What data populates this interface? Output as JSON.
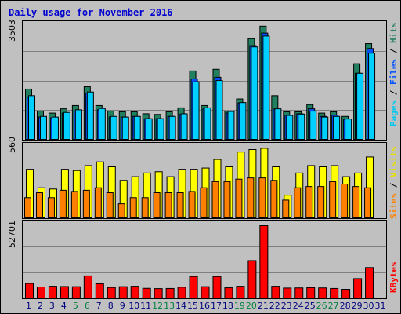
{
  "title": "Daily usage for November 2016",
  "right_labels": {
    "top": [
      {
        "text": "Pages",
        "color": "#00c8f0"
      },
      {
        "text": " / ",
        "color": "#000000"
      },
      {
        "text": "Files",
        "color": "#0050ff"
      },
      {
        "text": " / ",
        "color": "#000000"
      },
      {
        "text": "Hits",
        "color": "#2a8060"
      }
    ],
    "middle": [
      {
        "text": "Sites",
        "color": "#ff8000"
      },
      {
        "text": " / ",
        "color": "#000000"
      },
      {
        "text": "Visits",
        "color": "#e8e000"
      }
    ],
    "bottom": [
      {
        "text": "KBytes",
        "color": "#ff0000"
      }
    ]
  },
  "y_max_labels": {
    "hits": "3503",
    "visits": "560",
    "kbytes": "52701"
  },
  "colors": {
    "hits": "#208060",
    "files": "#0050ff",
    "pages": "#00d0ff",
    "visits": "#ffff00",
    "sites": "#ff8000",
    "kbytes": "#ff0000",
    "weekday_label": "#000080",
    "weekend_label": "#008040"
  },
  "chart_data": [
    {
      "type": "bar",
      "title": "Daily usage for November 2016",
      "categories": [
        "1",
        "2",
        "3",
        "4",
        "5",
        "6",
        "7",
        "8",
        "9",
        "10",
        "11",
        "12",
        "13",
        "14",
        "15",
        "16",
        "17",
        "18",
        "19",
        "20",
        "21",
        "22",
        "23",
        "24",
        "25",
        "26",
        "27",
        "28",
        "29",
        "30",
        "31"
      ],
      "weekend_days": [
        "5",
        "6",
        "12",
        "13",
        "19",
        "20",
        "26",
        "27"
      ],
      "ylim": [
        0,
        3503
      ],
      "series": [
        {
          "name": "Hits",
          "values": [
            1550,
            880,
            820,
            950,
            1050,
            1620,
            1050,
            880,
            860,
            860,
            800,
            780,
            860,
            980,
            2100,
            1050,
            2150,
            880,
            1250,
            3080,
            3460,
            1350,
            860,
            860,
            1080,
            820,
            860,
            720,
            2320,
            2930,
            0
          ]
        },
        {
          "name": "Files",
          "values": [
            1300,
            700,
            680,
            820,
            880,
            1430,
            920,
            700,
            700,
            720,
            650,
            650,
            720,
            780,
            1860,
            950,
            1910,
            820,
            1130,
            2870,
            3250,
            940,
            760,
            800,
            950,
            720,
            760,
            630,
            2030,
            2780,
            0
          ]
        },
        {
          "name": "Pages",
          "values": [
            1350,
            720,
            700,
            840,
            920,
            1460,
            960,
            720,
            700,
            720,
            650,
            650,
            720,
            800,
            1770,
            980,
            1810,
            870,
            1140,
            2830,
            3160,
            950,
            750,
            790,
            880,
            700,
            720,
            640,
            2030,
            2640,
            0
          ]
        }
      ]
    },
    {
      "type": "bar",
      "categories": [
        "1",
        "2",
        "3",
        "4",
        "5",
        "6",
        "7",
        "8",
        "9",
        "10",
        "11",
        "12",
        "13",
        "14",
        "15",
        "16",
        "17",
        "18",
        "19",
        "20",
        "21",
        "22",
        "23",
        "24",
        "25",
        "26",
        "27",
        "28",
        "29",
        "30",
        "31"
      ],
      "ylim": [
        0,
        560
      ],
      "series": [
        {
          "name": "Visits",
          "values": [
            400,
            250,
            240,
            400,
            390,
            430,
            460,
            420,
            310,
            340,
            370,
            380,
            340,
            400,
            400,
            410,
            480,
            420,
            540,
            560,
            570,
            420,
            190,
            370,
            430,
            420,
            430,
            340,
            370,
            500,
            0
          ]
        },
        {
          "name": "Sites",
          "values": [
            170,
            210,
            170,
            230,
            220,
            230,
            250,
            210,
            120,
            170,
            170,
            210,
            210,
            210,
            220,
            250,
            300,
            300,
            320,
            330,
            330,
            310,
            150,
            250,
            260,
            260,
            300,
            280,
            260,
            250,
            0
          ]
        }
      ]
    },
    {
      "type": "bar",
      "categories": [
        "1",
        "2",
        "3",
        "4",
        "5",
        "6",
        "7",
        "8",
        "9",
        "10",
        "11",
        "12",
        "13",
        "14",
        "15",
        "16",
        "17",
        "18",
        "19",
        "20",
        "21",
        "22",
        "23",
        "24",
        "25",
        "26",
        "27",
        "28",
        "29",
        "30",
        "31"
      ],
      "ylim": [
        0,
        52701
      ],
      "series": [
        {
          "name": "KBytes",
          "values": [
            11000,
            8500,
            9000,
            8800,
            8700,
            16500,
            10800,
            8100,
            8700,
            9000,
            7500,
            7300,
            7400,
            8300,
            16000,
            8700,
            16000,
            7900,
            9000,
            27500,
            52700,
            9000,
            7700,
            7800,
            8000,
            7800,
            7400,
            6800,
            14500,
            22500,
            0
          ]
        }
      ]
    }
  ]
}
